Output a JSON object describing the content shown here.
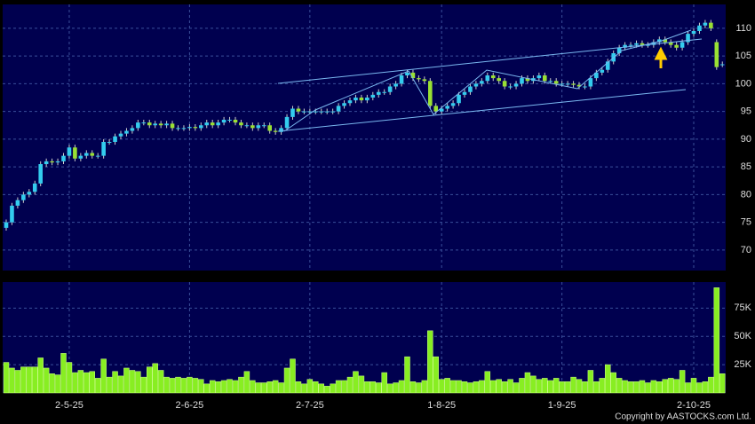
{
  "chart_data": [
    {
      "type": "candlestick",
      "up_color": "#33ccee",
      "down_color": "#99e033",
      "open": [
        74,
        75,
        78,
        79,
        80,
        80.5,
        82,
        85.5,
        86,
        85.8,
        86,
        87,
        88.5,
        86.5,
        87,
        87.5,
        87,
        87,
        89.5,
        89.5,
        90.5,
        91,
        91.5,
        92,
        93,
        93,
        92.5,
        92.8,
        92.5,
        92.8,
        92,
        92,
        92,
        92.2,
        92,
        92.5,
        93,
        92.5,
        93,
        93.5,
        93.5,
        93,
        92.5,
        92.5,
        92,
        92.5,
        92.5,
        91.5,
        91.3,
        92,
        94,
        95.5,
        95,
        95,
        95,
        95,
        95,
        95,
        95,
        96,
        96.5,
        97,
        97.5,
        97,
        97.5,
        98,
        98.5,
        98.5,
        99.5,
        100,
        101.5,
        102,
        101,
        100.8,
        100.5,
        96,
        95,
        95.5,
        96,
        96.5,
        98,
        98.5,
        99.5,
        100,
        100.5,
        101.5,
        101,
        100.5,
        99.5,
        99.5,
        100,
        101,
        100.5,
        101,
        101.5,
        100.5,
        100.5,
        100,
        100,
        100,
        99.8,
        99.5,
        99.5,
        101,
        102,
        102.5,
        104,
        105.5,
        106.5,
        107,
        107,
        107.3,
        107,
        107,
        107.5,
        108,
        107.5,
        107,
        106.5,
        107.5,
        109,
        109.5,
        110.5,
        111,
        107.5,
        103.5
      ],
      "high": [
        75.5,
        78.5,
        79.5,
        80.5,
        81,
        82.5,
        86,
        86.5,
        86.5,
        86.5,
        87.5,
        89,
        89,
        87.5,
        88,
        88,
        87.5,
        90,
        90,
        91,
        91.5,
        92,
        92.5,
        93.5,
        93.5,
        93.5,
        93.3,
        93.3,
        93.3,
        93.3,
        92.5,
        92.5,
        92.7,
        92.7,
        93,
        93.5,
        93.5,
        93.5,
        94,
        94,
        94,
        93.5,
        93,
        93,
        93,
        93,
        93,
        92,
        92.5,
        94.5,
        96,
        96,
        95.5,
        95.5,
        95.5,
        95.5,
        95.5,
        95.5,
        96.5,
        97,
        97.5,
        98,
        98,
        98,
        98.5,
        99,
        99,
        100,
        100.5,
        102,
        102.5,
        102.5,
        101.5,
        101.3,
        101,
        96.5,
        96,
        96.5,
        97,
        98.5,
        99,
        100,
        100.5,
        101,
        102,
        102,
        101.5,
        101,
        100,
        100.5,
        101.5,
        101.5,
        101.5,
        102,
        102,
        101,
        101,
        100.5,
        100.5,
        100.5,
        100.3,
        100,
        101.5,
        102.5,
        103,
        104.5,
        106,
        107,
        107.5,
        107.5,
        107.8,
        107.8,
        107.5,
        108,
        108.5,
        108.5,
        108,
        107.5,
        108,
        109.5,
        110,
        111,
        111.5,
        111.5,
        108,
        104
      ],
      "low": [
        73.5,
        74.5,
        77.5,
        78.5,
        79.5,
        80,
        81.5,
        85,
        85.3,
        85.3,
        85.5,
        86.5,
        86,
        86,
        86.5,
        86.5,
        86.5,
        86.5,
        89,
        89,
        90,
        90.5,
        91,
        91.5,
        92.5,
        92,
        92,
        92,
        92,
        91.5,
        91.5,
        91.5,
        91.5,
        91.5,
        91.5,
        92,
        92,
        92,
        92.5,
        93,
        92.5,
        92,
        92,
        91.5,
        91.5,
        92,
        91,
        90.8,
        90.8,
        91.5,
        93.5,
        94.5,
        94.5,
        94.5,
        94.5,
        94.5,
        94.5,
        94.5,
        94.5,
        95.5,
        96,
        96.5,
        96.5,
        96.5,
        97,
        97.5,
        98,
        98,
        99,
        99.5,
        101,
        100.5,
        100.3,
        100,
        95.5,
        94.5,
        94.5,
        95,
        95.5,
        96,
        97.5,
        98,
        99,
        99.5,
        100,
        100.5,
        100,
        99,
        99,
        99,
        99.5,
        100,
        100,
        100.5,
        100,
        100,
        99.5,
        99.5,
        99.5,
        99.3,
        99,
        99,
        99,
        100.5,
        101.5,
        102,
        103.5,
        105,
        106,
        106.5,
        106.5,
        106.5,
        106.5,
        106.5,
        107,
        107,
        106.5,
        106,
        106,
        107,
        108.5,
        109,
        110,
        109.5,
        102.5,
        103
      ],
      "close": [
        75,
        78,
        79,
        80,
        80.5,
        82,
        85.5,
        86,
        85.8,
        86,
        87,
        88.5,
        86.5,
        87,
        87.5,
        87,
        87,
        89.5,
        89.5,
        90.5,
        91,
        91.5,
        92,
        93,
        93,
        92.5,
        92.8,
        92.5,
        92.8,
        92,
        92,
        92,
        92.2,
        92,
        92.5,
        93,
        92.5,
        93,
        93.5,
        93.5,
        93,
        92.5,
        92.5,
        92,
        92.5,
        92.5,
        91.5,
        91.3,
        92,
        94,
        95.5,
        95,
        95,
        95,
        95,
        95,
        95,
        95,
        96,
        96.5,
        97,
        97.5,
        97,
        97.5,
        98,
        98.5,
        98.5,
        99.5,
        100,
        101.5,
        102,
        101,
        100.8,
        100.5,
        96,
        95,
        95.5,
        96,
        96.5,
        98,
        98.5,
        99.5,
        100,
        100.5,
        101.5,
        101,
        100.5,
        99.5,
        99.5,
        100,
        101,
        100.5,
        101,
        101.5,
        100.5,
        100.5,
        100,
        100,
        100,
        99.8,
        99.5,
        99.5,
        101,
        102,
        102.5,
        104,
        105.5,
        106.5,
        107,
        107,
        107.3,
        107,
        107,
        107.5,
        108,
        107.5,
        107,
        106.5,
        107.5,
        109,
        109.5,
        110.5,
        111,
        110,
        103,
        103.5
      ],
      "ylim": [
        66.3,
        114.3
      ],
      "yticks": [
        70,
        75,
        80,
        85,
        90,
        95,
        100,
        105,
        110
      ],
      "grid": true
    },
    {
      "type": "bar",
      "color": "#88ee22",
      "categories": [
        null,
        null,
        null,
        null,
        null,
        null,
        null,
        null,
        null,
        null,
        null,
        "2-5-25",
        null,
        null,
        null,
        null,
        null,
        null,
        null,
        null,
        null,
        null,
        null,
        null,
        null,
        null,
        null,
        null,
        null,
        null,
        null,
        null,
        "2-6-25",
        null,
        null,
        null,
        null,
        null,
        null,
        null,
        null,
        null,
        null,
        null,
        null,
        null,
        null,
        null,
        null,
        null,
        null,
        null,
        null,
        "2-7-25",
        null,
        null,
        null,
        null,
        null,
        null,
        null,
        null,
        null,
        null,
        null,
        null,
        null,
        null,
        null,
        null,
        null,
        null,
        null,
        null,
        null,
        null,
        "1-8-25",
        null,
        null,
        null,
        null,
        null,
        null,
        null,
        null,
        null,
        null,
        null,
        null,
        null,
        null,
        null,
        null,
        null,
        null,
        null,
        null,
        "1-9-25",
        null,
        null,
        null,
        null,
        null,
        null,
        null,
        null,
        null,
        null,
        null,
        null,
        null,
        null,
        null,
        null,
        null,
        null,
        null,
        null,
        null,
        null,
        "2-10-25",
        null,
        null,
        null,
        null,
        null
      ],
      "values": [
        27,
        22,
        20,
        23,
        23,
        23,
        31,
        22,
        17,
        16,
        35,
        27,
        18,
        20,
        18,
        19,
        13,
        30,
        14,
        19,
        15,
        22,
        20,
        19,
        14,
        23,
        26,
        20,
        14,
        13,
        14,
        13,
        14,
        13,
        12,
        8,
        11,
        10,
        11,
        12,
        11,
        14,
        19,
        11,
        9,
        9,
        10,
        11,
        9,
        22,
        30,
        10,
        8,
        12,
        10,
        8,
        6,
        8,
        11,
        11,
        14,
        19,
        15,
        10,
        10,
        9,
        18,
        8,
        9,
        11,
        32,
        10,
        9,
        11,
        55,
        32,
        12,
        13,
        11,
        11,
        10,
        9,
        10,
        11,
        19,
        11,
        12,
        10,
        12,
        9,
        13,
        18,
        15,
        12,
        13,
        11,
        13,
        10,
        10,
        14,
        12,
        10,
        20,
        10,
        13,
        25,
        18,
        13,
        11,
        10,
        10,
        11,
        9,
        11,
        10,
        12,
        13,
        12,
        20,
        9,
        13,
        9,
        10,
        14,
        93,
        17
      ],
      "ylim": [
        0,
        98
      ],
      "yticks": [
        {
          "value": 25,
          "label": "25K"
        },
        {
          "value": 50,
          "label": "50K"
        },
        {
          "value": 75,
          "label": "75K"
        }
      ],
      "grid": true
    }
  ],
  "footer": "Copyright by AASTOCKS.com Ltd."
}
